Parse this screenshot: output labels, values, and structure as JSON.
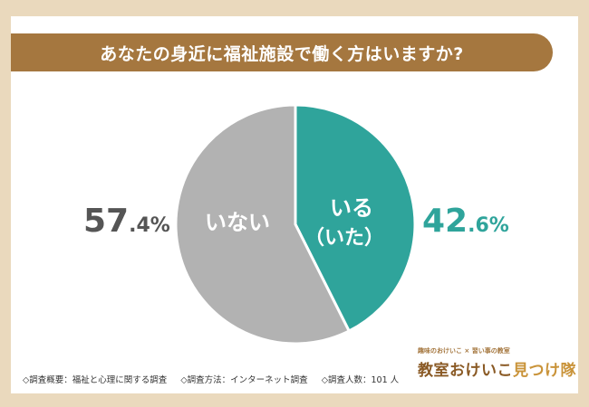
{
  "title": "あなたの身近に福祉施設で働く方はいますか?",
  "chart_data": {
    "type": "pie",
    "slices": [
      {
        "label_lines": [
          "いる",
          "（いた）"
        ],
        "value": 42.6,
        "pct_int": "42",
        "pct_dec": ".6%",
        "color": "#2fa49b"
      },
      {
        "label_lines": [
          "いない"
        ],
        "value": 57.4,
        "pct_int": "57",
        "pct_dec": ".4%",
        "color": "#b2b2b2"
      }
    ],
    "start": "12 o'clock",
    "direction": "clockwise"
  },
  "footer": {
    "survey_summary": "◇調査概要：福祉と心理に関する調査",
    "survey_method": "◇調査方法：インターネット調査",
    "survey_count": "◇調査人数：101 人"
  },
  "logo": {
    "tagline": "趣味のおけいこ × 習い事の教室",
    "name_main": "教室おけいこ",
    "name_accent": "見つけ隊"
  }
}
